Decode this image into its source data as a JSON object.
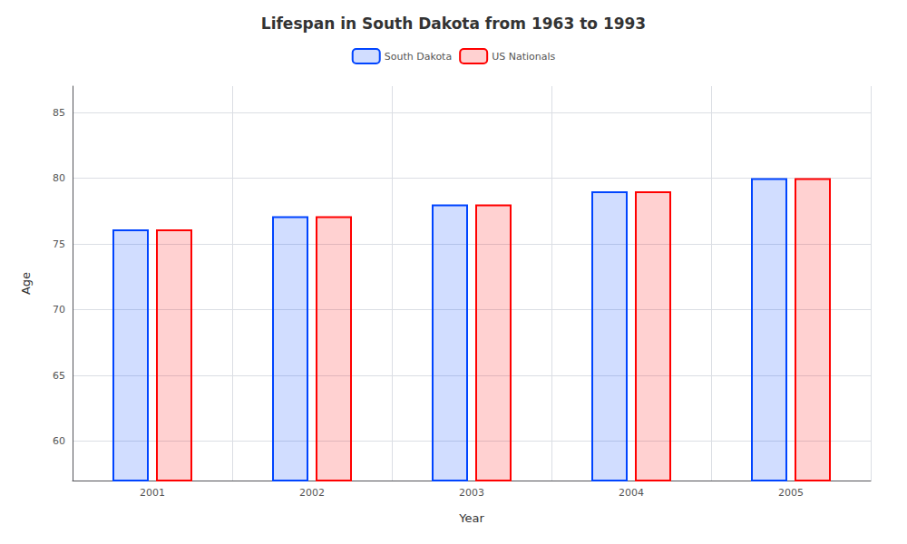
{
  "chart_data": {
    "type": "bar",
    "title": "Lifespan in South Dakota from 1963 to 1993",
    "xlabel": "Year",
    "ylabel": "Age",
    "categories": [
      "2001",
      "2002",
      "2003",
      "2004",
      "2005"
    ],
    "series": [
      {
        "name": "South Dakota",
        "color": "#0044ff",
        "values": [
          76.1,
          77.1,
          78.0,
          79.0,
          80.0
        ]
      },
      {
        "name": "US Nationals",
        "color": "#ff0000",
        "values": [
          76.1,
          77.1,
          78.0,
          79.0,
          80.0
        ]
      }
    ],
    "ylim": [
      57,
      87
    ],
    "yticks": [
      60,
      65,
      70,
      75,
      80,
      85
    ],
    "grid": true,
    "legend": "top"
  }
}
